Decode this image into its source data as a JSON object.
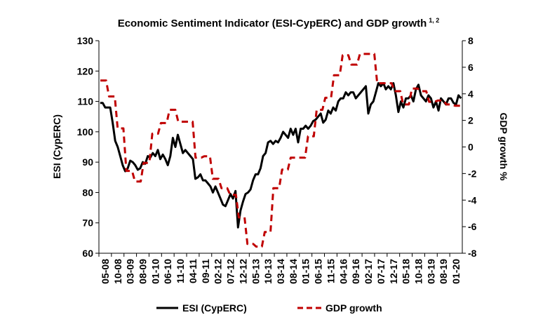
{
  "chart_data": {
    "type": "line",
    "title": "Economic Sentiment Indicator (ESI-CypERC) and GDP growth",
    "title_superscript": "1, 2",
    "ylabel_left": "ESI (CypERC)",
    "ylabel_right": "GDP growth %",
    "ylim_left": [
      60,
      130
    ],
    "ylim_right": [
      -8,
      8
    ],
    "yticks_left": [
      "130",
      "120",
      "110",
      "100",
      "90",
      "80",
      "70",
      "60"
    ],
    "yticks_right": [
      "8",
      "6",
      "4",
      "2",
      "0",
      "-2",
      "-4",
      "-6",
      "-8"
    ],
    "x_tick_labels": [
      "05-08",
      "10-08",
      "03-09",
      "08-09",
      "01-10",
      "06-10",
      "11-10",
      "04-11",
      "09-11",
      "02-12",
      "07-12",
      "12-12",
      "05-13",
      "10-13",
      "03-14",
      "08-14",
      "01-15",
      "06-15",
      "11-15",
      "04-16",
      "09-16",
      "02-17",
      "07-17",
      "12-17",
      "05-18",
      "10-18",
      "03-19",
      "08-19",
      "01-20"
    ],
    "x_start": "05-08",
    "x_end": "03-20",
    "legend_position": "bottom",
    "grid": false,
    "series": [
      {
        "name": "ESI (CypERC)",
        "axis": "left",
        "color": "#000000",
        "style": "solid",
        "values": [
          109.5,
          109.5,
          108,
          108,
          108,
          103,
          97,
          95,
          92,
          89,
          87,
          88,
          90.5,
          90,
          89,
          87.5,
          88,
          90,
          89.5,
          92,
          91.5,
          93,
          92,
          94,
          91,
          92.5,
          91,
          89,
          92,
          98,
          95,
          99,
          96,
          93,
          94,
          93,
          92,
          91,
          84.5,
          85,
          86,
          84,
          84,
          83,
          82,
          80,
          82,
          80,
          78,
          76,
          75.5,
          77.5,
          79.5,
          78,
          80.5,
          68.5,
          74,
          77,
          79.5,
          80,
          81,
          84,
          86,
          86,
          88,
          92,
          93,
          96.5,
          97,
          96,
          97,
          96.5,
          98,
          100,
          99,
          98,
          101,
          99,
          101,
          96.5,
          101,
          101,
          102,
          101,
          102,
          103.5,
          104,
          105,
          106,
          103,
          104,
          107,
          106,
          108,
          107,
          110,
          111,
          111,
          113,
          112,
          113,
          113,
          111,
          112,
          113,
          114,
          115,
          106,
          109,
          110,
          113,
          116,
          115,
          116,
          114,
          115,
          114,
          116,
          112,
          106.5,
          110,
          108,
          111,
          111,
          112,
          110,
          114,
          115.5,
          112,
          111,
          110,
          112,
          111,
          108,
          110,
          107,
          111,
          110,
          109,
          111,
          111,
          109.5,
          109,
          112,
          111
        ]
      },
      {
        "name": "GDP growth",
        "axis": "right",
        "color": "#c00000",
        "style": "dashed",
        "values": [
          5,
          5,
          5,
          3.8,
          3.8,
          3.8,
          1.4,
          1.4,
          1.4,
          -1.8,
          -1.8,
          -1.8,
          -2.6,
          -2.6,
          -2.6,
          -1.2,
          -1.2,
          -1.2,
          1,
          1,
          1,
          1.8,
          1.8,
          1.8,
          2.8,
          2.8,
          2.8,
          1.9,
          1.9,
          1.9,
          1.9,
          1.9,
          1.9,
          -0.8,
          -0.8,
          -0.8,
          -0.7,
          -0.7,
          -0.7,
          -2.4,
          -2.4,
          -2.4,
          -3.1,
          -3.1,
          -3.1,
          -3.6,
          -3.6,
          -3.6,
          -5.3,
          -5.3,
          -5.3,
          -7.3,
          -7.3,
          -7.3,
          -7.5,
          -7.5,
          -7.5,
          -6.4,
          -6.4,
          -6.4,
          -3.1,
          -3.1,
          -3.1,
          -1.7,
          -1.7,
          -1.7,
          -0.8,
          -0.8,
          -0.8,
          -0.8,
          -0.8,
          -0.8,
          0.8,
          0.8,
          0.8,
          2.8,
          2.8,
          2.8,
          3.7,
          3.7,
          3.7,
          5.4,
          5.4,
          5.4,
          6.9,
          6.9,
          6.9,
          6.2,
          6.2,
          6.2,
          7,
          7,
          7,
          7,
          7,
          7,
          4.8,
          4.8,
          4.8,
          4.8,
          4.8,
          4.8,
          4.2,
          4.2,
          4.2,
          3.2,
          3.2,
          3.2,
          4.4,
          4.4,
          4.4,
          4.2,
          4.2,
          4.2,
          3.4,
          3.4,
          3.4,
          3.5,
          3.5,
          3.5,
          3.2,
          3.2,
          3.2,
          3.1,
          3.1,
          3.1
        ]
      }
    ]
  }
}
